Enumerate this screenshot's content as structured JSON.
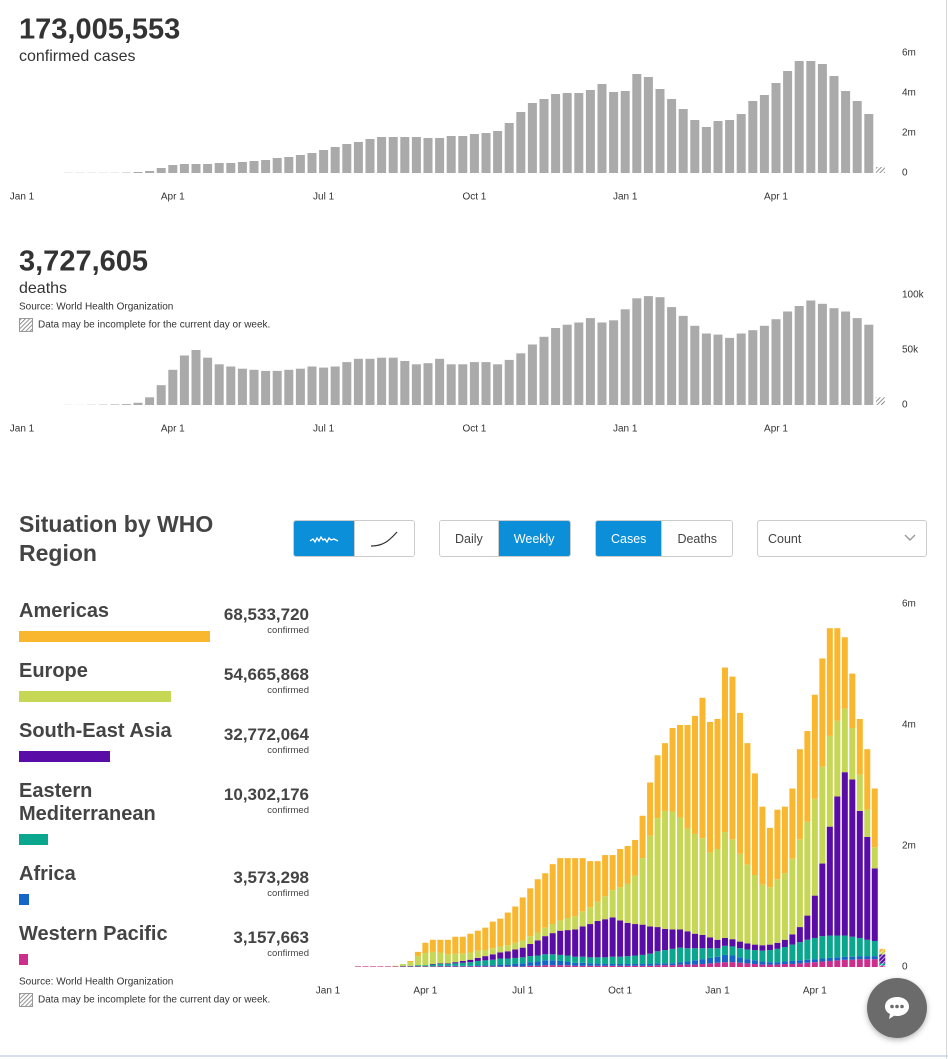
{
  "chart_data": [
    {
      "type": "bar",
      "headline": "173,005,553",
      "subtitle": "confirmed cases",
      "color": "#aaaaaa",
      "incomplete_last_bar": true,
      "categories": [
        "Jan 1",
        null,
        null,
        null,
        null,
        null,
        null,
        null,
        null,
        null,
        null,
        null,
        null,
        "Apr 1",
        null,
        null,
        null,
        null,
        null,
        null,
        null,
        null,
        null,
        null,
        null,
        null,
        "Jul 1",
        null,
        null,
        null,
        null,
        null,
        null,
        null,
        null,
        null,
        null,
        null,
        null,
        "Oct 1",
        null,
        null,
        null,
        null,
        null,
        null,
        null,
        null,
        null,
        null,
        null,
        null,
        "Jan 1",
        null,
        null,
        null,
        null,
        null,
        null,
        null,
        null,
        null,
        null,
        null,
        null,
        "Apr 1",
        null,
        null,
        null,
        null,
        null,
        null,
        null,
        null,
        null
      ],
      "values": [
        null,
        null,
        null,
        null,
        0.01,
        0.01,
        0.01,
        0.01,
        0.01,
        0.02,
        0.05,
        0.1,
        0.25,
        0.4,
        0.45,
        0.45,
        0.45,
        0.5,
        0.5,
        0.55,
        0.6,
        0.65,
        0.75,
        0.8,
        0.9,
        1.0,
        1.15,
        1.3,
        1.45,
        1.55,
        1.7,
        1.8,
        1.8,
        1.8,
        1.8,
        1.75,
        1.75,
        1.85,
        1.85,
        1.95,
        2.0,
        2.1,
        2.5,
        3.05,
        3.5,
        3.7,
        3.95,
        4.0,
        4.0,
        4.15,
        4.45,
        4.05,
        4.1,
        4.95,
        4.8,
        4.2,
        3.7,
        3.2,
        2.65,
        2.3,
        2.6,
        2.65,
        2.95,
        3.6,
        3.9,
        4.5,
        5.1,
        5.6,
        5.6,
        5.45,
        4.85,
        4.1,
        3.6,
        2.95,
        0.3
      ],
      "ylim": [
        0,
        6
      ],
      "yticks": [
        0,
        {
          "value": 2,
          "label": "2m"
        },
        {
          "value": 4,
          "label": "4m"
        },
        {
          "value": 6,
          "label": "6m"
        }
      ],
      "grid": false
    },
    {
      "type": "bar",
      "headline": "3,727,605",
      "subtitle": "deaths",
      "source": "Source: World Health Organization",
      "note": "Data may be incomplete for the current day or week.",
      "color": "#aaaaaa",
      "incomplete_last_bar": true,
      "categories": [
        "Jan 1",
        null,
        null,
        null,
        null,
        null,
        null,
        null,
        null,
        null,
        null,
        null,
        null,
        "Apr 1",
        null,
        null,
        null,
        null,
        null,
        null,
        null,
        null,
        null,
        null,
        null,
        null,
        "Jul 1",
        null,
        null,
        null,
        null,
        null,
        null,
        null,
        null,
        null,
        null,
        null,
        null,
        "Oct 1",
        null,
        null,
        null,
        null,
        null,
        null,
        null,
        null,
        null,
        null,
        null,
        null,
        "Jan 1",
        null,
        null,
        null,
        null,
        null,
        null,
        null,
        null,
        null,
        null,
        null,
        null,
        "Apr 1",
        null,
        null,
        null,
        null,
        null,
        null,
        null,
        null,
        null
      ],
      "values": [
        null,
        null,
        null,
        null,
        0.1,
        0.1,
        0.2,
        0.3,
        0.5,
        0.8,
        2,
        7,
        18,
        32,
        45,
        50,
        43,
        37,
        35,
        33,
        32,
        31,
        31,
        32,
        33,
        35,
        34,
        35,
        39,
        42,
        42,
        43,
        43,
        40,
        37,
        38,
        42,
        37,
        37,
        39,
        39,
        37,
        41,
        47,
        55,
        62,
        70,
        73,
        75,
        79,
        75,
        77,
        87,
        97,
        99,
        98,
        89,
        81,
        72,
        65,
        64,
        61,
        65,
        68,
        72,
        78,
        85,
        90,
        95,
        92,
        88,
        85,
        79,
        73,
        7
      ],
      "ylim": [
        0,
        100
      ],
      "yticks": [
        0,
        {
          "value": 50,
          "label": "50k"
        },
        {
          "value": 100,
          "label": "100k"
        }
      ],
      "grid": false
    },
    {
      "type": "stacked_bar",
      "title": "Situation by WHO Region",
      "source": "Source: World Health Organization",
      "note": "Data may be incomplete for the current day or week.",
      "total_caption": "confirmed",
      "incomplete_last_bar": true,
      "categories": [
        "Jan 1",
        null,
        null,
        null,
        null,
        null,
        null,
        null,
        null,
        null,
        null,
        null,
        null,
        "Apr 1",
        null,
        null,
        null,
        null,
        null,
        null,
        null,
        null,
        null,
        null,
        null,
        null,
        "Jul 1",
        null,
        null,
        null,
        null,
        null,
        null,
        null,
        null,
        null,
        null,
        null,
        null,
        "Oct 1",
        null,
        null,
        null,
        null,
        null,
        null,
        null,
        null,
        null,
        null,
        null,
        null,
        "Jan 1",
        null,
        null,
        null,
        null,
        null,
        null,
        null,
        null,
        null,
        null,
        null,
        null,
        "Apr 1",
        null,
        null,
        null,
        null,
        null,
        null,
        null,
        null,
        null
      ],
      "ylim": [
        0,
        6
      ],
      "yticks": [
        0,
        {
          "value": 2,
          "label": "2m"
        },
        {
          "value": 4,
          "label": "4m"
        },
        {
          "value": 6,
          "label": "6m"
        }
      ],
      "grid": false,
      "series": [
        {
          "name": "Americas",
          "color": "#f9b72f",
          "total": 68533720,
          "total_label": "68,533,720",
          "values": [
            null,
            null,
            null,
            null,
            0,
            0,
            0,
            0,
            0,
            0,
            0,
            0.02,
            0.07,
            0.17,
            0.2,
            0.21,
            0.24,
            0.28,
            0.28,
            0.31,
            0.33,
            0.37,
            0.44,
            0.46,
            0.54,
            0.6,
            0.71,
            0.79,
            0.88,
            0.9,
            0.99,
            1.03,
            0.99,
            0.96,
            0.88,
            0.76,
            0.67,
            0.68,
            0.58,
            0.63,
            0.62,
            0.59,
            0.7,
            0.88,
            1.04,
            1.12,
            1.38,
            1.53,
            1.71,
            1.95,
            2.32,
            2.16,
            2.15,
            2.72,
            2.69,
            2.33,
            2.01,
            1.68,
            1.29,
            0.98,
            1.15,
            1.1,
            1.16,
            1.49,
            1.5,
            1.72,
            1.79,
            1.78,
            1.53,
            1.18,
            0.9,
            0.92,
            1.0,
            0.97,
            0.05
          ]
        },
        {
          "name": "Europe",
          "color": "#c6d655",
          "total": 54665868,
          "total_label": "54,665,868",
          "values": [
            null,
            null,
            null,
            null,
            0,
            0,
            0,
            0,
            0,
            0.01,
            0.03,
            0.06,
            0.15,
            0.2,
            0.2,
            0.18,
            0.15,
            0.14,
            0.12,
            0.12,
            0.12,
            0.1,
            0.1,
            0.1,
            0.1,
            0.11,
            0.12,
            0.13,
            0.13,
            0.14,
            0.15,
            0.17,
            0.2,
            0.22,
            0.25,
            0.28,
            0.32,
            0.38,
            0.45,
            0.55,
            0.65,
            0.8,
            1.1,
            1.5,
            1.8,
            1.95,
            1.95,
            1.85,
            1.7,
            1.65,
            1.6,
            1.4,
            1.5,
            1.75,
            1.65,
            1.45,
            1.3,
            1.15,
            1.0,
            0.95,
            1.05,
            1.1,
            1.25,
            1.45,
            1.55,
            1.6,
            1.6,
            1.5,
            1.25,
            1.05,
            0.85,
            0.6,
            0.45,
            0.35,
            0.04
          ]
        },
        {
          "name": "South-East Asia",
          "color": "#5a0ca6",
          "total": 32772064,
          "total_label": "32,772,064",
          "values": [
            null,
            null,
            null,
            null,
            0,
            0,
            0,
            0,
            0,
            0,
            0,
            0,
            0,
            0,
            0.01,
            0.01,
            0.01,
            0.02,
            0.03,
            0.04,
            0.05,
            0.07,
            0.09,
            0.1,
            0.12,
            0.14,
            0.16,
            0.2,
            0.25,
            0.3,
            0.35,
            0.4,
            0.42,
            0.45,
            0.5,
            0.55,
            0.6,
            0.63,
            0.65,
            0.6,
            0.55,
            0.52,
            0.5,
            0.45,
            0.4,
            0.35,
            0.32,
            0.3,
            0.28,
            0.24,
            0.22,
            0.18,
            0.14,
            0.13,
            0.12,
            0.11,
            0.1,
            0.09,
            0.09,
            0.09,
            0.1,
            0.12,
            0.17,
            0.25,
            0.4,
            0.7,
            1.2,
            1.8,
            2.3,
            2.7,
            2.6,
            2.1,
            1.7,
            1.2,
            0.15
          ]
        },
        {
          "name": "Eastern Mediterranean",
          "color": "#0aa68e",
          "total": 10302176,
          "total_label": "10,302,176",
          "values": [
            null,
            null,
            null,
            null,
            0,
            0,
            0,
            0,
            0,
            0,
            0.01,
            0.01,
            0.02,
            0.02,
            0.03,
            0.03,
            0.03,
            0.04,
            0.05,
            0.06,
            0.07,
            0.08,
            0.09,
            0.1,
            0.1,
            0.1,
            0.1,
            0.1,
            0.1,
            0.1,
            0.1,
            0.1,
            0.1,
            0.1,
            0.1,
            0.1,
            0.1,
            0.11,
            0.12,
            0.12,
            0.13,
            0.14,
            0.15,
            0.17,
            0.2,
            0.22,
            0.24,
            0.24,
            0.22,
            0.2,
            0.18,
            0.16,
            0.14,
            0.15,
            0.15,
            0.15,
            0.16,
            0.17,
            0.18,
            0.2,
            0.22,
            0.24,
            0.27,
            0.3,
            0.33,
            0.35,
            0.37,
            0.37,
            0.36,
            0.35,
            0.33,
            0.3,
            0.27,
            0.25,
            0.03
          ]
        },
        {
          "name": "Africa",
          "color": "#1565c8",
          "total": 3573298,
          "total_label": "3,573,298",
          "values": [
            null,
            null,
            null,
            null,
            0,
            0,
            0,
            0,
            0,
            0,
            0,
            0,
            0,
            0,
            0,
            0.01,
            0.01,
            0.01,
            0.01,
            0.01,
            0.02,
            0.02,
            0.02,
            0.03,
            0.03,
            0.04,
            0.05,
            0.06,
            0.07,
            0.08,
            0.08,
            0.07,
            0.06,
            0.05,
            0.05,
            0.04,
            0.04,
            0.03,
            0.03,
            0.03,
            0.03,
            0.03,
            0.03,
            0.03,
            0.03,
            0.03,
            0.03,
            0.04,
            0.05,
            0.07,
            0.08,
            0.09,
            0.1,
            0.12,
            0.11,
            0.09,
            0.07,
            0.06,
            0.05,
            0.04,
            0.04,
            0.04,
            0.05,
            0.05,
            0.05,
            0.05,
            0.05,
            0.05,
            0.05,
            0.05,
            0.05,
            0.05,
            0.05,
            0.05,
            0.01
          ]
        },
        {
          "name": "Western Pacific",
          "color": "#cc2e8c",
          "total": 3157663,
          "total_label": "3,157,663",
          "values": [
            null,
            null,
            null,
            null,
            0.01,
            0.01,
            0.01,
            0.01,
            0.01,
            0.01,
            0.01,
            0.01,
            0.01,
            0.01,
            0.01,
            0.01,
            0.01,
            0.01,
            0.01,
            0.01,
            0.01,
            0.01,
            0.01,
            0.01,
            0.01,
            0.01,
            0.01,
            0.02,
            0.02,
            0.03,
            0.03,
            0.03,
            0.03,
            0.02,
            0.02,
            0.02,
            0.02,
            0.02,
            0.02,
            0.02,
            0.02,
            0.02,
            0.02,
            0.02,
            0.03,
            0.03,
            0.03,
            0.04,
            0.04,
            0.04,
            0.05,
            0.06,
            0.07,
            0.08,
            0.08,
            0.07,
            0.06,
            0.05,
            0.04,
            0.04,
            0.04,
            0.05,
            0.05,
            0.06,
            0.07,
            0.08,
            0.09,
            0.1,
            0.11,
            0.12,
            0.12,
            0.13,
            0.13,
            0.13,
            0.02
          ]
        }
      ]
    }
  ],
  "controls": {
    "chart_style": {
      "selected": 0
    },
    "frequency": {
      "options": [
        "Daily",
        "Weekly"
      ],
      "selected": 1
    },
    "measure": {
      "options": [
        "Cases",
        "Deaths"
      ],
      "selected": 0
    },
    "scale": "Count"
  }
}
